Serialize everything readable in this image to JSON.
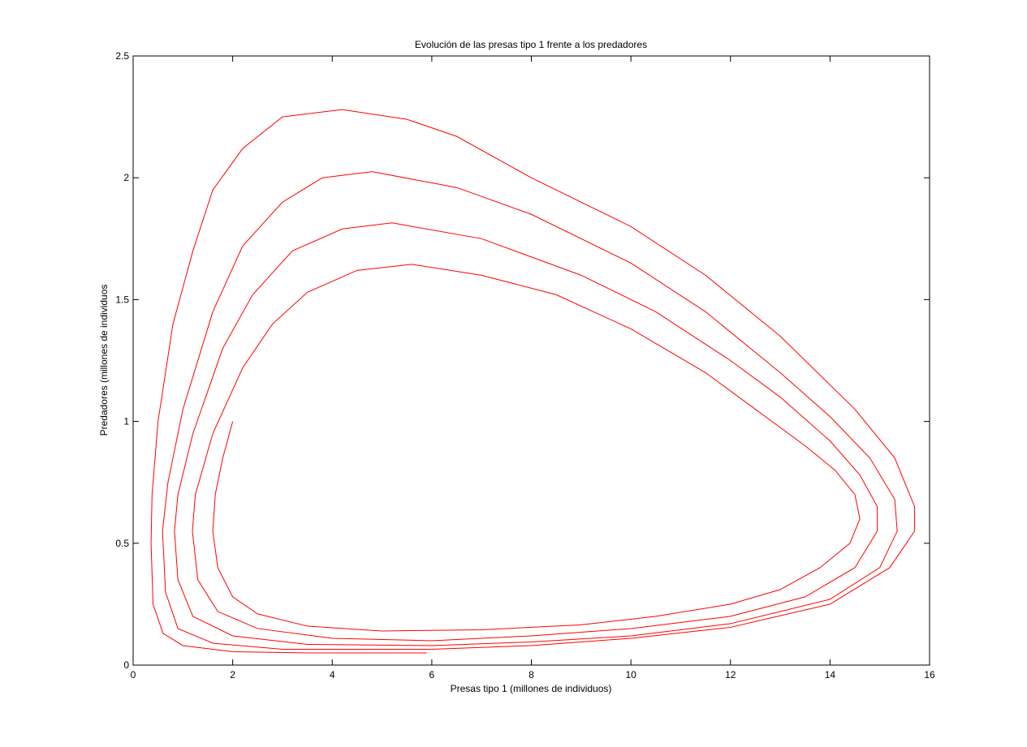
{
  "chart_data": {
    "type": "line",
    "title": "Evolución de las presas tipo 1 frente a los predadores",
    "xlabel": "Presas tipo 1 (millones de individuos)",
    "ylabel": "Predadores (millones de individuos",
    "xlim": [
      0,
      16
    ],
    "ylim": [
      0,
      2.5
    ],
    "xticks": [
      0,
      2,
      4,
      6,
      8,
      10,
      12,
      14,
      16
    ],
    "yticks": [
      0,
      0.5,
      1,
      1.5,
      2,
      2.5
    ],
    "grid": false,
    "series": [
      {
        "color": "#ff0000",
        "x": [
          2,
          1.8,
          1.65,
          1.6,
          1.7,
          2,
          2.5,
          3.5,
          5,
          7,
          9,
          10.5,
          12,
          13,
          13.8,
          14.4,
          14.6,
          14.5,
          14.1,
          13.5,
          12.5,
          11.5,
          10,
          8.5,
          7,
          5.6,
          4.5,
          3.5,
          2.8,
          2.2,
          1.6,
          1.25,
          1.19,
          1.3,
          1.7,
          2.5,
          4,
          6,
          8,
          10,
          12,
          13.5,
          14.5,
          14.95,
          14.95,
          14.6,
          14,
          13,
          12,
          10.5,
          9,
          7,
          5.2,
          4.2,
          3.2,
          2.4,
          1.8,
          1.2,
          0.9,
          0.83,
          0.9,
          1.2,
          2,
          3.5,
          6,
          8,
          10,
          12,
          14,
          15,
          15.35,
          15.3,
          14.8,
          14,
          13,
          11.5,
          10,
          8,
          6.5,
          4.8,
          3.8,
          3,
          2.2,
          1.6,
          1,
          0.7,
          0.59,
          0.65,
          0.9,
          1.6,
          3,
          6,
          8,
          10,
          12,
          14,
          15.2,
          15.7,
          15.7,
          15.3,
          14.5,
          13,
          11.5,
          10,
          8,
          6.5,
          5.5,
          4.2,
          3,
          2.2,
          1.6,
          1.2,
          0.8,
          0.5,
          0.38,
          0.36,
          0.4,
          0.6,
          1,
          2,
          3.5,
          5.9
        ],
        "values": [
          1,
          0.85,
          0.7,
          0.55,
          0.4,
          0.28,
          0.21,
          0.16,
          0.14,
          0.145,
          0.165,
          0.2,
          0.25,
          0.31,
          0.4,
          0.5,
          0.6,
          0.7,
          0.8,
          0.9,
          1.05,
          1.2,
          1.38,
          1.52,
          1.6,
          1.645,
          1.62,
          1.53,
          1.4,
          1.22,
          0.95,
          0.7,
          0.55,
          0.35,
          0.22,
          0.15,
          0.11,
          0.1,
          0.12,
          0.15,
          0.2,
          0.28,
          0.4,
          0.55,
          0.65,
          0.78,
          0.92,
          1.1,
          1.25,
          1.45,
          1.6,
          1.75,
          1.815,
          1.79,
          1.7,
          1.52,
          1.3,
          0.95,
          0.7,
          0.55,
          0.35,
          0.2,
          0.12,
          0.085,
          0.08,
          0.095,
          0.12,
          0.17,
          0.27,
          0.4,
          0.55,
          0.68,
          0.85,
          1.02,
          1.2,
          1.45,
          1.65,
          1.85,
          1.96,
          2.025,
          2.0,
          1.9,
          1.72,
          1.45,
          1.05,
          0.75,
          0.55,
          0.3,
          0.15,
          0.09,
          0.065,
          0.065,
          0.08,
          0.11,
          0.155,
          0.25,
          0.4,
          0.55,
          0.65,
          0.85,
          1.05,
          1.35,
          1.6,
          1.8,
          2.0,
          2.17,
          2.24,
          2.28,
          2.25,
          2.12,
          1.95,
          1.7,
          1.4,
          1.0,
          0.7,
          0.5,
          0.25,
          0.13,
          0.08,
          0.055,
          0.05,
          0.05
        ]
      }
    ]
  }
}
